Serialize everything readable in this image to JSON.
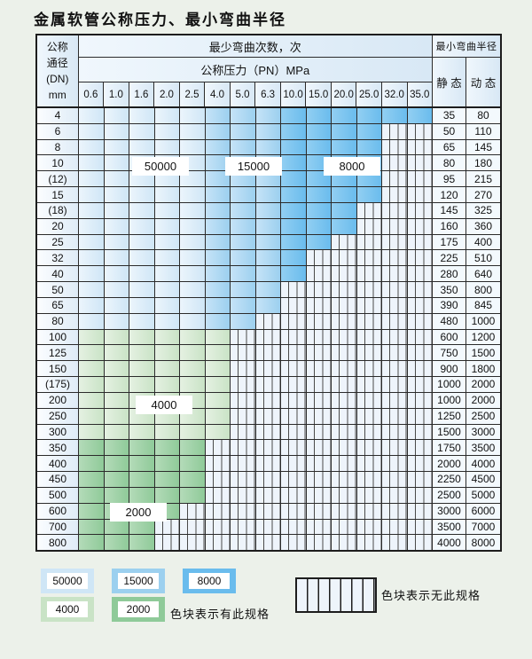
{
  "title": "金属软管公称压力、最小弯曲半径",
  "colors": {
    "page_bg": "#ecf1ea",
    "grid_line": "#2b2b2b",
    "header_bg": "#d8e8f5",
    "header_bg_light": "#f0f7fd",
    "dn_bg": "#dfecf7",
    "dn_bg_light": "#fbfdff",
    "value_bg": "#f3f9fd",
    "blue_50000": "#cfe6f6",
    "blue_50000_light": "#ecf5fc",
    "blue_15000": "#9cd0ef",
    "blue_15000_light": "#c6e3f7",
    "blue_8000": "#6abced",
    "blue_8000_light": "#92cff2",
    "green_4000": "#c9e3c6",
    "green_4000_light": "#e5f1e2",
    "green_2000": "#8fca99",
    "green_2000_light": "#b4dbb9",
    "hatch_bg": "#eef4fb",
    "hatch_line": "#4a4a4a"
  },
  "table": {
    "corner_lines": [
      "公称",
      "通径",
      "(DN)",
      "mm"
    ],
    "header": {
      "bend_cycles": "最少弯曲次数，次",
      "pressure": "公称压力（PN）MPa",
      "radius": "最小弯曲半径",
      "static": "静 态",
      "dynamic": "动 态",
      "pressures": [
        "0.6",
        "1.0",
        "1.6",
        "2.0",
        "2.5",
        "4.0",
        "5.0",
        "6.3",
        "10.0",
        "15.0",
        "20.0",
        "25.0",
        "32.0",
        "35.0"
      ]
    },
    "rows": [
      {
        "dn": "4",
        "last": "35.0",
        "group": "blue",
        "static": "35",
        "dynamic": "80"
      },
      {
        "dn": "6",
        "last": "25.0",
        "group": "blue",
        "static": "50",
        "dynamic": "110"
      },
      {
        "dn": "8",
        "last": "25.0",
        "group": "blue",
        "static": "65",
        "dynamic": "145"
      },
      {
        "dn": "10",
        "last": "25.0",
        "group": "blue",
        "static": "80",
        "dynamic": "180"
      },
      {
        "dn": "(12)",
        "last": "25.0",
        "group": "blue",
        "static": "95",
        "dynamic": "215"
      },
      {
        "dn": "15",
        "last": "25.0",
        "group": "blue",
        "static": "120",
        "dynamic": "270"
      },
      {
        "dn": "(18)",
        "last": "20.0",
        "group": "blue",
        "static": "145",
        "dynamic": "325"
      },
      {
        "dn": "20",
        "last": "20.0",
        "group": "blue",
        "static": "160",
        "dynamic": "360"
      },
      {
        "dn": "25",
        "last": "15.0",
        "group": "blue",
        "static": "175",
        "dynamic": "400"
      },
      {
        "dn": "32",
        "last": "10.0",
        "group": "blue",
        "static": "225",
        "dynamic": "510"
      },
      {
        "dn": "40",
        "last": "10.0",
        "group": "blue",
        "static": "280",
        "dynamic": "640"
      },
      {
        "dn": "50",
        "last": "6.3",
        "group": "blue",
        "static": "350",
        "dynamic": "800"
      },
      {
        "dn": "65",
        "last": "6.3",
        "group": "blue",
        "static": "390",
        "dynamic": "845"
      },
      {
        "dn": "80",
        "last": "5.0",
        "group": "blue",
        "static": "480",
        "dynamic": "1000"
      },
      {
        "dn": "100",
        "last": "4.0",
        "group": "lgreen",
        "static": "600",
        "dynamic": "1200"
      },
      {
        "dn": "125",
        "last": "4.0",
        "group": "lgreen",
        "static": "750",
        "dynamic": "1500"
      },
      {
        "dn": "150",
        "last": "4.0",
        "group": "lgreen",
        "static": "900",
        "dynamic": "1800"
      },
      {
        "dn": "(175)",
        "last": "4.0",
        "group": "lgreen",
        "static": "1000",
        "dynamic": "2000"
      },
      {
        "dn": "200",
        "last": "4.0",
        "group": "lgreen",
        "static": "1000",
        "dynamic": "2000"
      },
      {
        "dn": "250",
        "last": "4.0",
        "group": "lgreen",
        "static": "1250",
        "dynamic": "2500"
      },
      {
        "dn": "300",
        "last": "4.0",
        "group": "lgreen",
        "static": "1500",
        "dynamic": "3000"
      },
      {
        "dn": "350",
        "last": "2.5",
        "group": "dgreen",
        "static": "1750",
        "dynamic": "3500"
      },
      {
        "dn": "400",
        "last": "2.5",
        "group": "dgreen",
        "static": "2000",
        "dynamic": "4000"
      },
      {
        "dn": "450",
        "last": "2.5",
        "group": "dgreen",
        "static": "2250",
        "dynamic": "4500"
      },
      {
        "dn": "500",
        "last": "2.5",
        "group": "dgreen",
        "static": "2500",
        "dynamic": "5000"
      },
      {
        "dn": "600",
        "last": "2.0",
        "group": "dgreen",
        "static": "3000",
        "dynamic": "6000"
      },
      {
        "dn": "700",
        "last": "1.6",
        "group": "dgreen",
        "static": "3500",
        "dynamic": "7000"
      },
      {
        "dn": "800",
        "last": "1.6",
        "group": "dgreen",
        "static": "4000",
        "dynamic": "8000"
      }
    ],
    "region_labels": [
      {
        "text": "50000"
      },
      {
        "text": "15000"
      },
      {
        "text": "8000"
      },
      {
        "text": "4000"
      },
      {
        "text": "2000"
      }
    ]
  },
  "legend": {
    "spec_items": [
      {
        "value": "50000",
        "color": "#cfe6f6"
      },
      {
        "value": "15000",
        "color": "#9cd0ef"
      },
      {
        "value": "8000",
        "color": "#6abced"
      },
      {
        "value": "4000",
        "color": "#c9e3c6"
      },
      {
        "value": "2000",
        "color": "#8fca99"
      }
    ],
    "has_spec_text": "色块表示有此规格",
    "no_spec_text": "色块表示无此规格"
  }
}
